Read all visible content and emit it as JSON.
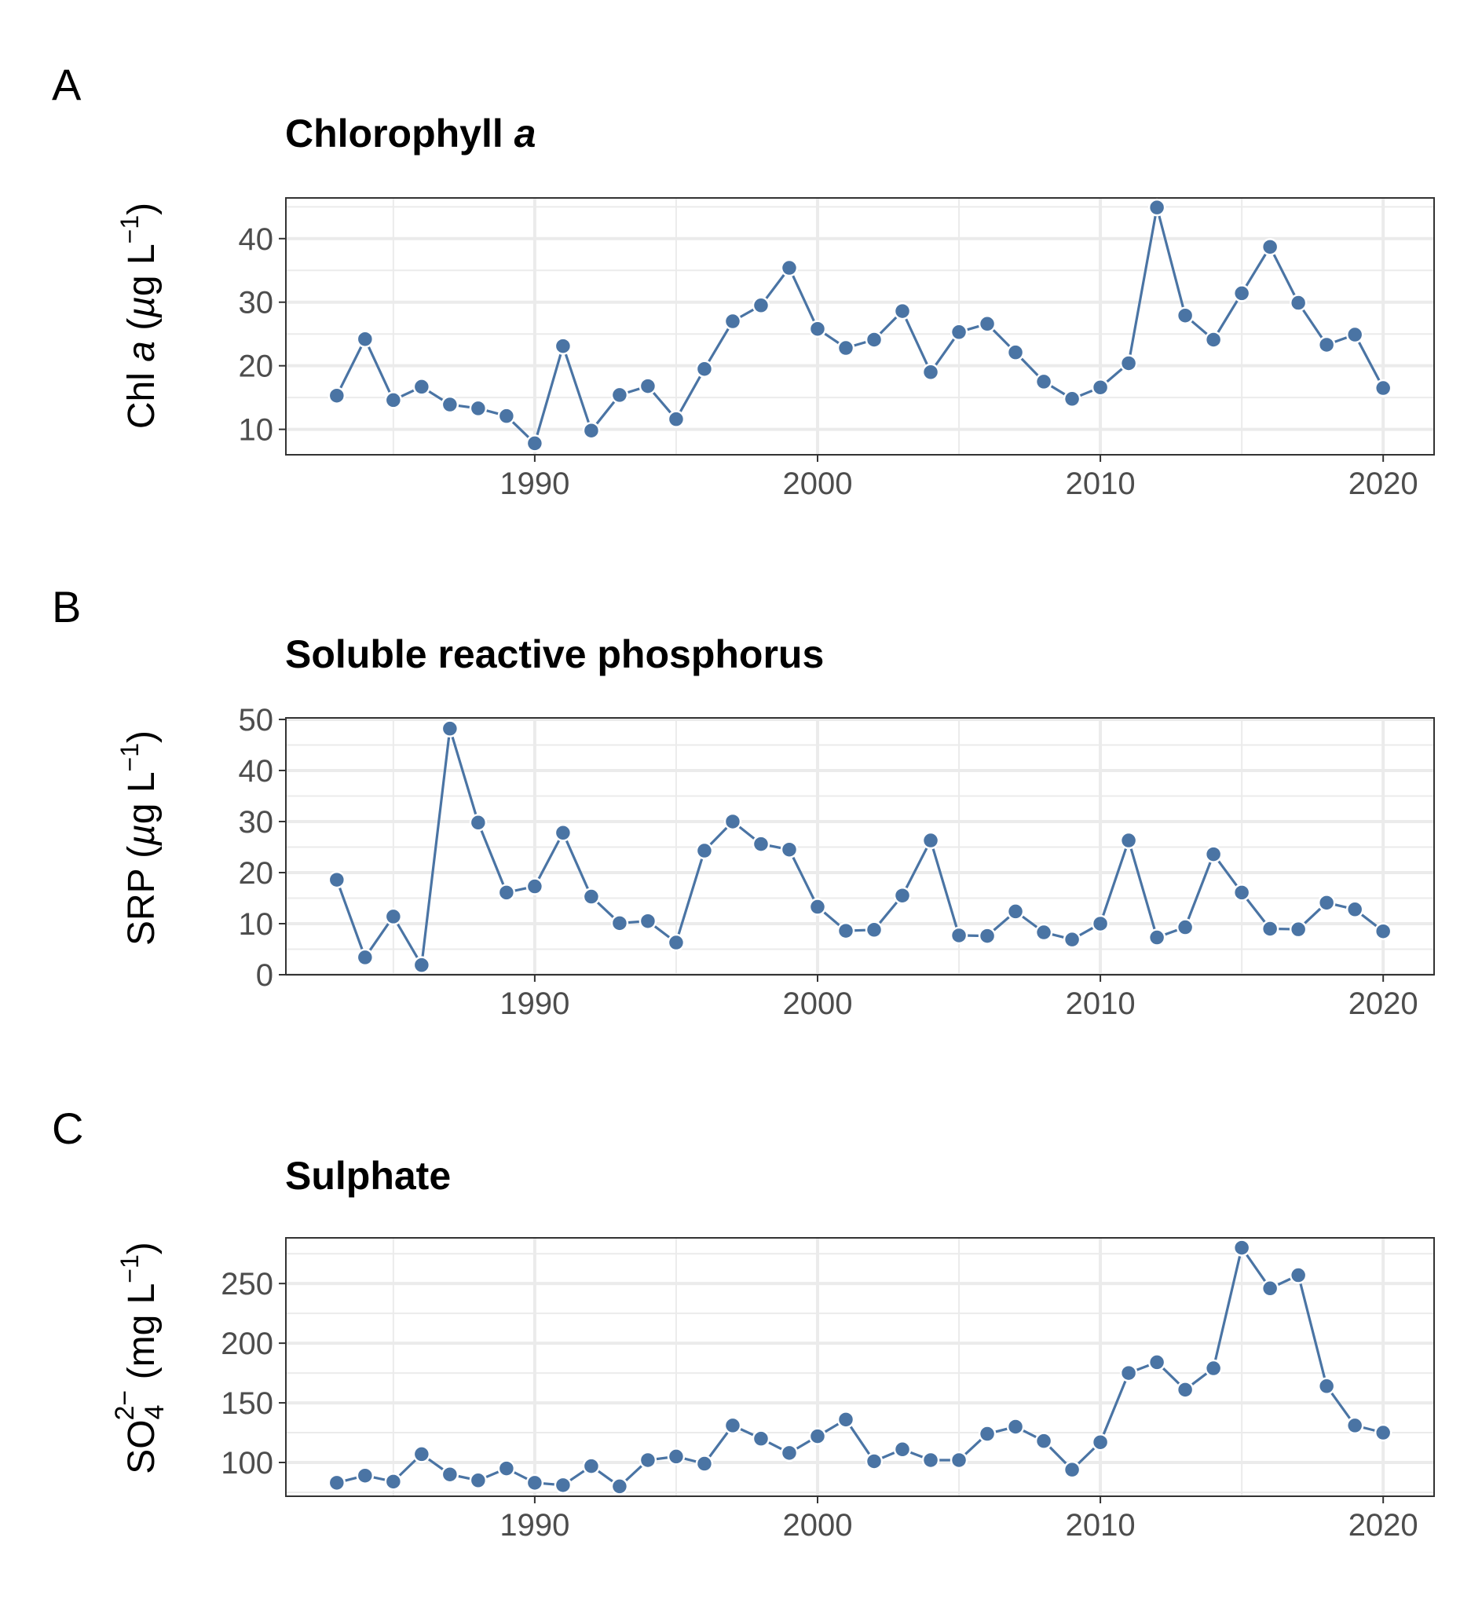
{
  "chart_data": [
    {
      "panel": "A",
      "type": "line",
      "title": {
        "main": "Chlorophyll ",
        "italic": "a"
      },
      "ylabel": {
        "pre": "Chl ",
        "italic": "a",
        "post": " (",
        "mu": "µ",
        "units": "g L",
        "sup": "−1",
        "close": ")"
      },
      "x": [
        1983,
        1984,
        1985,
        1986,
        1987,
        1988,
        1989,
        1990,
        1991,
        1992,
        1993,
        1994,
        1995,
        1996,
        1997,
        1998,
        1999,
        2000,
        2001,
        2002,
        2003,
        2004,
        2005,
        2006,
        2007,
        2008,
        2009,
        2010,
        2011,
        2012,
        2013,
        2014,
        2015,
        2016,
        2017,
        2018,
        2019,
        2020
      ],
      "values": [
        15.3,
        24.2,
        14.6,
        16.7,
        13.9,
        13.3,
        12.1,
        7.8,
        23.1,
        9.8,
        15.4,
        16.8,
        11.6,
        19.5,
        27.0,
        29.5,
        35.4,
        25.8,
        22.8,
        24.1,
        28.6,
        19.0,
        25.3,
        26.6,
        22.1,
        17.5,
        14.8,
        16.6,
        20.4,
        44.9,
        27.9,
        24.1,
        31.4,
        38.7,
        29.9,
        23.3,
        24.9,
        16.5
      ],
      "xlim": [
        1981.2,
        2021.8
      ],
      "ylim": [
        6.0,
        46.4
      ],
      "xticks": [
        1990,
        2000,
        2010,
        2020
      ],
      "yticks": [
        10,
        20,
        30,
        40
      ],
      "grid": true,
      "color": "#4a74a4"
    },
    {
      "panel": "B",
      "type": "line",
      "title": {
        "main": "Soluble reactive phosphorus",
        "italic": ""
      },
      "ylabel": {
        "pre": "SRP",
        "italic": "",
        "post": " (",
        "mu": "µ",
        "units": "g L",
        "sup": "−1",
        "close": ")"
      },
      "x": [
        1983,
        1984,
        1985,
        1986,
        1987,
        1988,
        1989,
        1990,
        1991,
        1992,
        1993,
        1994,
        1995,
        1996,
        1997,
        1998,
        1999,
        2000,
        2001,
        2002,
        2003,
        2004,
        2005,
        2006,
        2007,
        2008,
        2009,
        2010,
        2011,
        2012,
        2013,
        2014,
        2015,
        2016,
        2017,
        2018,
        2019,
        2020
      ],
      "values": [
        18.6,
        3.4,
        11.4,
        1.9,
        48.2,
        29.8,
        16.1,
        17.3,
        27.8,
        15.3,
        10.1,
        10.5,
        6.3,
        24.3,
        30.0,
        25.6,
        24.5,
        13.3,
        8.6,
        8.8,
        15.5,
        26.3,
        7.7,
        7.6,
        12.4,
        8.3,
        6.9,
        10.0,
        26.3,
        7.3,
        9.3,
        23.6,
        16.1,
        9.0,
        8.9,
        14.1,
        12.8,
        8.5
      ],
      "xlim": [
        1981.2,
        2021.8
      ],
      "ylim": [
        0,
        50.3
      ],
      "xticks": [
        1990,
        2000,
        2010,
        2020
      ],
      "yticks": [
        0,
        10,
        20,
        30,
        40,
        50
      ],
      "grid": true,
      "color": "#4a74a4"
    },
    {
      "panel": "C",
      "type": "line",
      "title": {
        "main": "Sulphate",
        "italic": ""
      },
      "ylabel": {
        "pre": "SO",
        "sub": "4",
        "supion": "2−",
        "post": " (mg L",
        "sup": "−1",
        "close": ")"
      },
      "x": [
        1983,
        1984,
        1985,
        1986,
        1987,
        1988,
        1989,
        1990,
        1991,
        1992,
        1993,
        1994,
        1995,
        1996,
        1997,
        1998,
        1999,
        2000,
        2001,
        2002,
        2003,
        2004,
        2005,
        2006,
        2007,
        2008,
        2009,
        2010,
        2011,
        2012,
        2013,
        2014,
        2015,
        2016,
        2017,
        2018,
        2019,
        2020
      ],
      "values": [
        83,
        89,
        84,
        107,
        90,
        85,
        95,
        83,
        81,
        97,
        80,
        102,
        105,
        99,
        131,
        120,
        108,
        122,
        136,
        101,
        111,
        102,
        102,
        124,
        130,
        118,
        94,
        117,
        175,
        184,
        161,
        179,
        280,
        246,
        257,
        164,
        131,
        125
      ],
      "xlim": [
        1981.2,
        2021.8
      ],
      "ylim": [
        71.7,
        288.3
      ],
      "xticks": [
        1990,
        2000,
        2010,
        2020
      ],
      "yticks": [
        100,
        150,
        200,
        250
      ],
      "grid": true,
      "color": "#4a74a4"
    }
  ]
}
